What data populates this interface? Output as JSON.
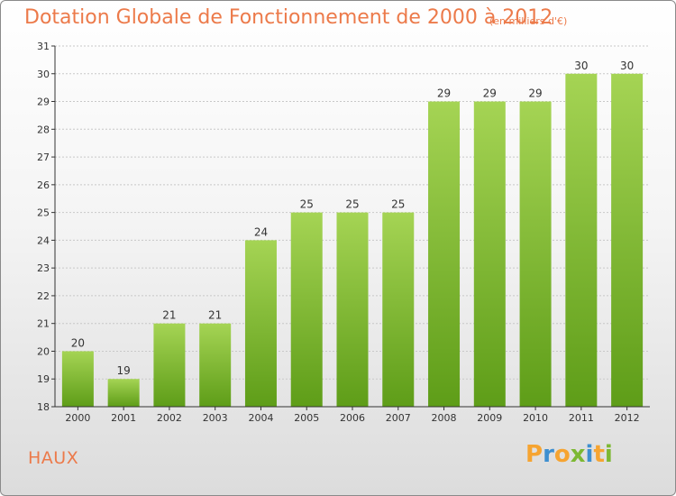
{
  "title": "Dotation Globale de Fonctionnement de 2000 à 2012",
  "unit_note": "(en milliers d'€)",
  "commune": "HAUX",
  "logo": {
    "text": "Proxiti",
    "letters": [
      {
        "ch": "P",
        "color": "#f6a431"
      },
      {
        "ch": "r",
        "color": "#3e8fd0"
      },
      {
        "ch": "o",
        "color": "#f6a431"
      },
      {
        "ch": "x",
        "color": "#7cb832"
      },
      {
        "ch": "i",
        "color": "#3e8fd0"
      },
      {
        "ch": "t",
        "color": "#f6a431"
      },
      {
        "ch": "i",
        "color": "#7cb832"
      }
    ]
  },
  "colors": {
    "title": "#ec7a4a",
    "bar_top": "#a5d454",
    "bar_bottom": "#5e9d18",
    "grid": "#c8c8c8",
    "axis": "#333333",
    "text": "#333333"
  },
  "chart_data": {
    "type": "bar",
    "title": "Dotation Globale de Fonctionnement de 2000 à 2012",
    "subtitle": "(en milliers d'€)",
    "categories": [
      "2000",
      "2001",
      "2002",
      "2003",
      "2004",
      "2005",
      "2006",
      "2007",
      "2008",
      "2009",
      "2010",
      "2011",
      "2012"
    ],
    "values": [
      20,
      19,
      21,
      21,
      24,
      25,
      25,
      25,
      29,
      29,
      29,
      30,
      30
    ],
    "ylim": [
      18,
      31
    ],
    "yticks": [
      18,
      19,
      20,
      21,
      22,
      23,
      24,
      25,
      26,
      27,
      28,
      29,
      30,
      31
    ],
    "grid": true,
    "legend": "none",
    "data_labels": true
  }
}
